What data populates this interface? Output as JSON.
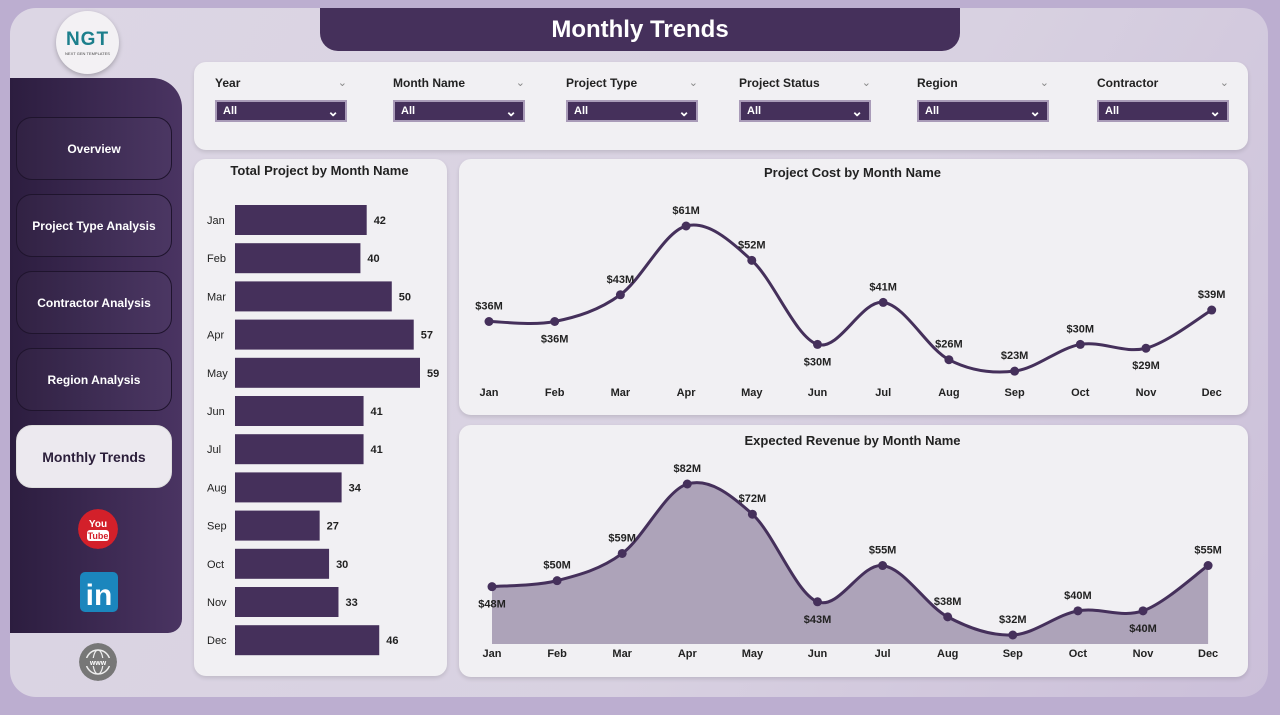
{
  "header": {
    "title": "Monthly Trends"
  },
  "logo": {
    "text": "NGT",
    "subtitle": "NEXT GEN TEMPLATES"
  },
  "sidebar": {
    "items": [
      {
        "label": "Overview"
      },
      {
        "label": "Project Type Analysis"
      },
      {
        "label": "Contractor Analysis"
      },
      {
        "label": "Region Analysis"
      },
      {
        "label": "Monthly Trends",
        "active": true
      }
    ],
    "social": [
      "youtube-icon",
      "linkedin-icon",
      "website-globe-icon"
    ]
  },
  "filters": [
    {
      "label": "Year",
      "value": "All"
    },
    {
      "label": "Month Name",
      "value": "All"
    },
    {
      "label": "Project Type",
      "value": "All"
    },
    {
      "label": "Project Status",
      "value": "All"
    },
    {
      "label": "Region",
      "value": "All"
    },
    {
      "label": "Contractor",
      "value": "All"
    }
  ],
  "colors": {
    "accent": "#45305b",
    "area": "#ada3b9"
  },
  "chart_data": [
    {
      "type": "bar",
      "orientation": "horizontal",
      "title": "Total Project by Month Name",
      "categories": [
        "Jan",
        "Feb",
        "Mar",
        "Apr",
        "May",
        "Jun",
        "Jul",
        "Aug",
        "Sep",
        "Oct",
        "Nov",
        "Dec"
      ],
      "values": [
        42,
        40,
        50,
        57,
        59,
        41,
        41,
        34,
        27,
        30,
        33,
        46
      ]
    },
    {
      "type": "line",
      "title": "Project Cost by Month Name",
      "categories": [
        "Jan",
        "Feb",
        "Mar",
        "Apr",
        "May",
        "Jun",
        "Jul",
        "Aug",
        "Sep",
        "Oct",
        "Nov",
        "Dec"
      ],
      "values": [
        36,
        36,
        43,
        61,
        52,
        30,
        41,
        26,
        23,
        30,
        29,
        39
      ],
      "labels": [
        "$36M",
        "$36M",
        "$43M",
        "$61M",
        "$52M",
        "$30M",
        "$41M",
        "$26M",
        "$23M",
        "$30M",
        "$29M",
        "$39M"
      ]
    },
    {
      "type": "area",
      "title": "Expected Revenue by Month Name",
      "categories": [
        "Jan",
        "Feb",
        "Mar",
        "Apr",
        "May",
        "Jun",
        "Jul",
        "Aug",
        "Sep",
        "Oct",
        "Nov",
        "Dec"
      ],
      "values": [
        48,
        50,
        59,
        82,
        72,
        43,
        55,
        38,
        32,
        40,
        40,
        55
      ],
      "labels": [
        "$48M",
        "$50M",
        "$59M",
        "$82M",
        "$72M",
        "$43M",
        "$55M",
        "$38M",
        "$32M",
        "$40M",
        "$40M",
        "$55M"
      ]
    }
  ]
}
